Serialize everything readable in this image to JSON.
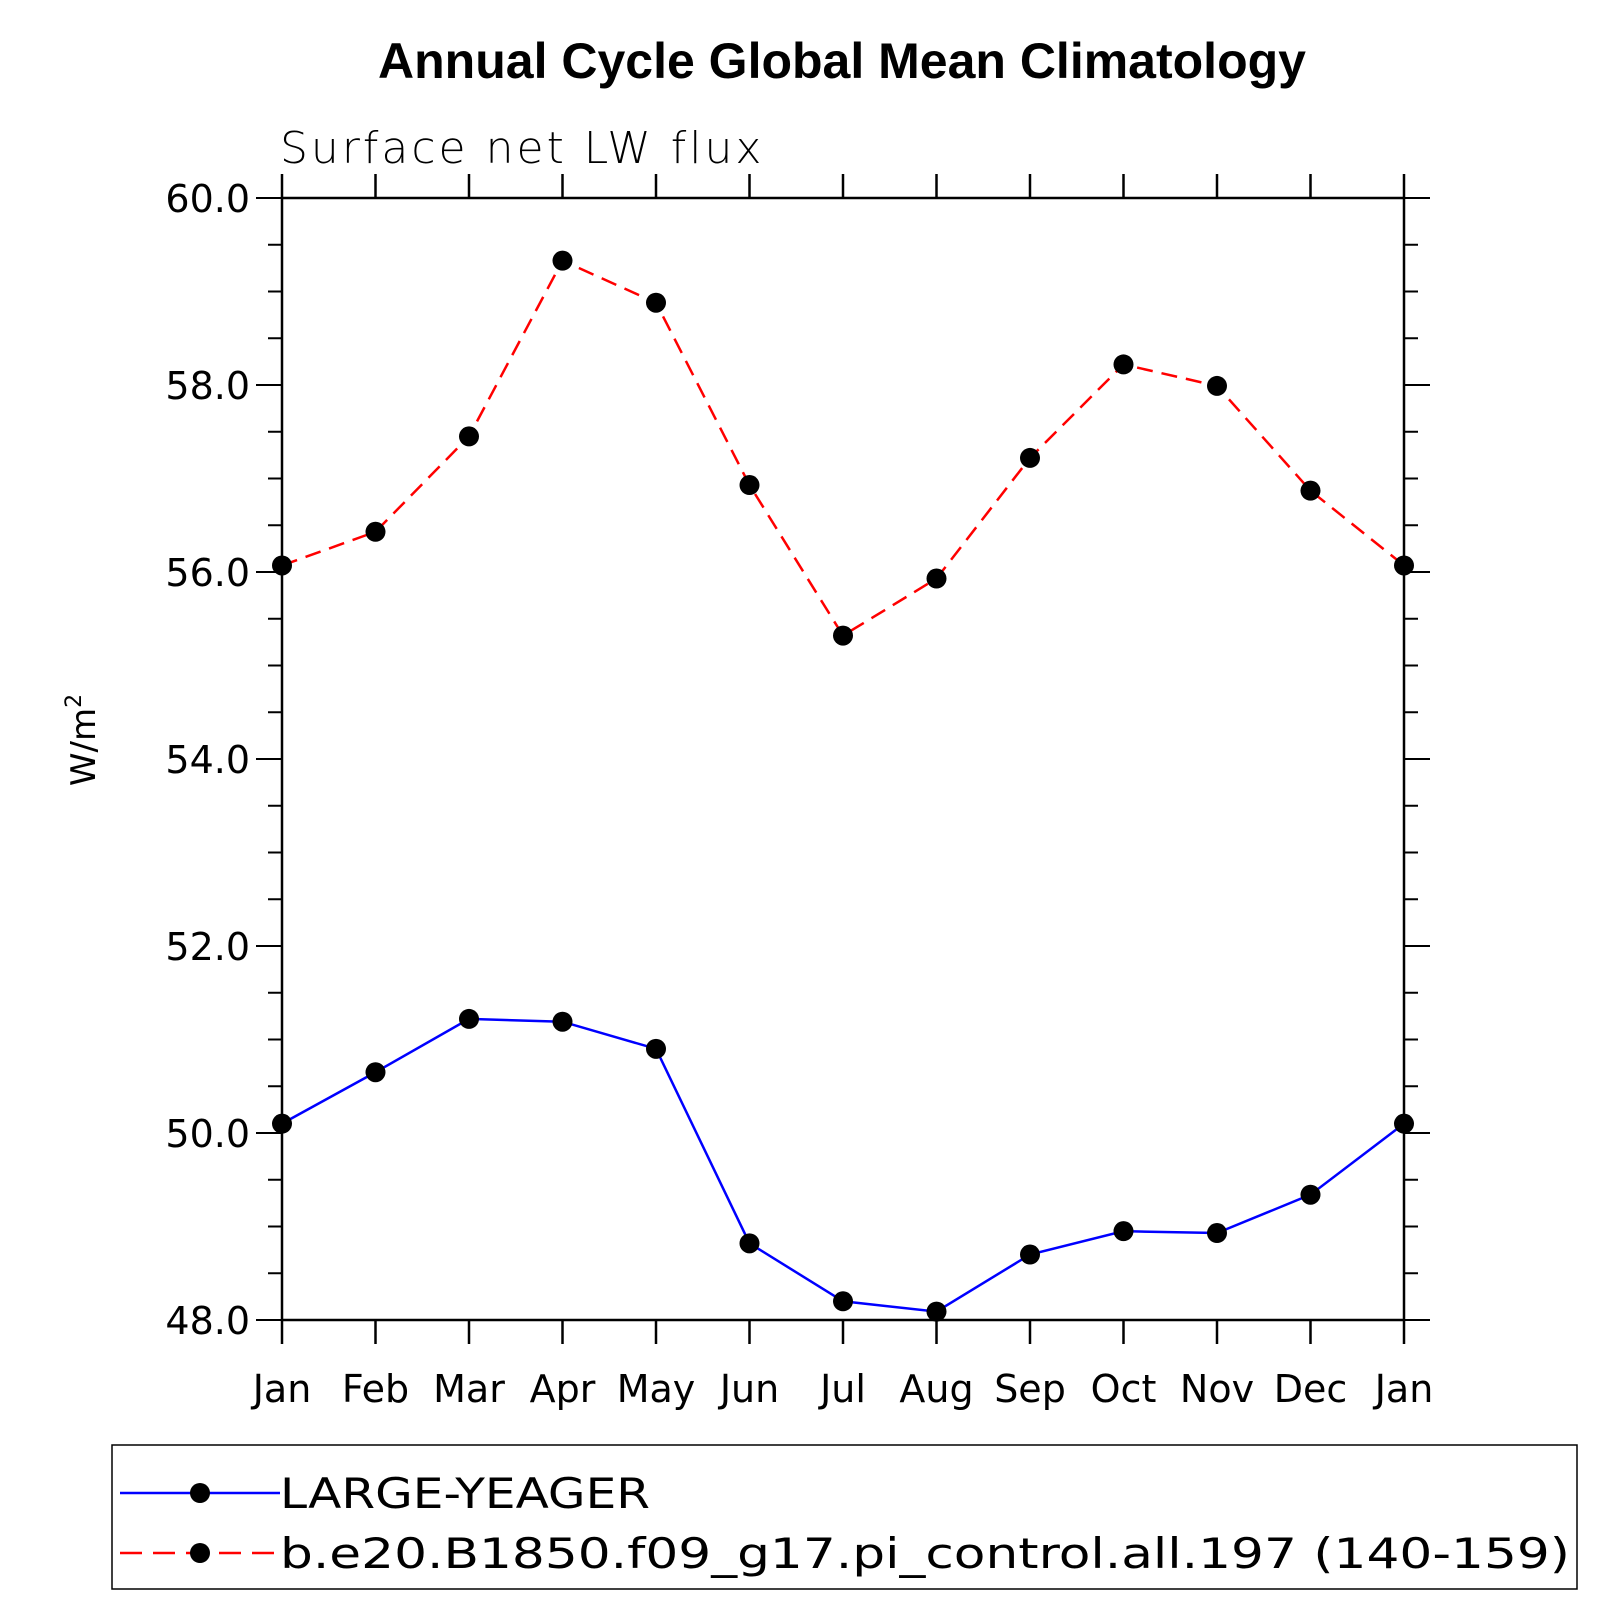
{
  "chart_data": {
    "type": "line",
    "title": "Annual Cycle Global Mean Climatology",
    "subtitle": "Surface net LW flux",
    "ylabel": "W/m",
    "ylabel_sup": "2",
    "xlabel": "",
    "categories": [
      "Jan",
      "Feb",
      "Mar",
      "Apr",
      "May",
      "Jun",
      "Jul",
      "Aug",
      "Sep",
      "Oct",
      "Nov",
      "Dec",
      "Jan"
    ],
    "ylim": [
      48.0,
      60.0
    ],
    "yticks": [
      48.0,
      50.0,
      52.0,
      54.0,
      56.0,
      58.0,
      60.0
    ],
    "ytick_labels": [
      "48.0",
      "50.0",
      "52.0",
      "54.0",
      "56.0",
      "58.0",
      "60.0"
    ],
    "grid": false,
    "legend_position": "bottom",
    "series": [
      {
        "name": "LARGE-YEAGER",
        "color": "#0000ff",
        "style": "solid",
        "values": [
          50.1,
          50.65,
          51.22,
          51.19,
          50.9,
          48.82,
          48.2,
          48.09,
          48.7,
          48.95,
          48.93,
          49.34,
          50.1
        ]
      },
      {
        "name": "b.e20.B1850.f09_g17.pi_control.all.197 (140-159)",
        "color": "#ff0000",
        "style": "dashed",
        "values": [
          56.07,
          56.43,
          57.45,
          59.33,
          58.88,
          56.93,
          55.32,
          55.93,
          57.22,
          58.22,
          57.99,
          56.87,
          56.07
        ]
      }
    ]
  }
}
